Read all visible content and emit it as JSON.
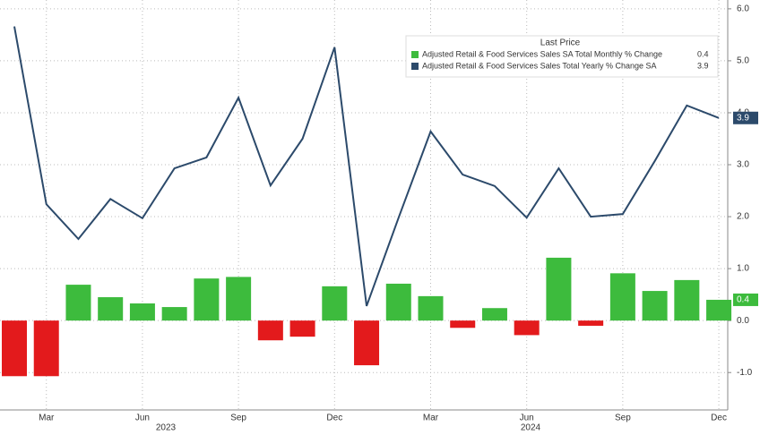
{
  "chart_data": {
    "type": "bar_line",
    "categories": [
      null,
      "Mar",
      null,
      null,
      "Jun",
      null,
      null,
      "Sep",
      null,
      null,
      "Dec",
      null,
      null,
      "Mar",
      null,
      null,
      "Jun",
      null,
      null,
      "Sep",
      null,
      null,
      "Dec"
    ],
    "x_group_labels": [
      "2023",
      "2024"
    ],
    "legend_title": "Last Price",
    "series": [
      {
        "name": "Adjusted Retail & Food Services Sales SA Total Monthly % Change",
        "type": "bar",
        "color": "#3dbb3d",
        "negative_color": "#e31a1c",
        "values": [
          -1.07,
          -1.07,
          0.69,
          0.45,
          0.33,
          0.26,
          0.81,
          0.84,
          -0.38,
          -0.31,
          0.66,
          -0.86,
          0.71,
          0.47,
          -0.14,
          0.24,
          -0.28,
          1.21,
          -0.1,
          0.91,
          0.57,
          0.78,
          0.4
        ]
      },
      {
        "name": "Adjusted Retail & Food Services Sales Total Yearly % Change SA",
        "type": "line",
        "color": "#2c4a6b",
        "values": [
          5.66,
          2.24,
          1.57,
          2.34,
          1.97,
          2.93,
          3.14,
          4.29,
          2.6,
          3.5,
          5.26,
          0.28,
          1.98,
          3.64,
          2.81,
          2.59,
          1.98,
          2.93,
          2.0,
          2.05,
          3.07,
          4.14,
          3.9
        ]
      }
    ],
    "ylim": [
      -1.72,
      6.17
    ],
    "yticks": [
      {
        "value": -1,
        "label": "-1.0"
      },
      {
        "value": 0,
        "label": "0.0"
      },
      {
        "value": 1,
        "label": "1.0"
      },
      {
        "value": 2,
        "label": "2.0"
      },
      {
        "value": 3,
        "label": "3.0"
      },
      {
        "value": 4,
        "label": "4.0"
      },
      {
        "value": 5,
        "label": "5.0"
      },
      {
        "value": 6,
        "label": "6.0"
      }
    ],
    "grid": true
  }
}
